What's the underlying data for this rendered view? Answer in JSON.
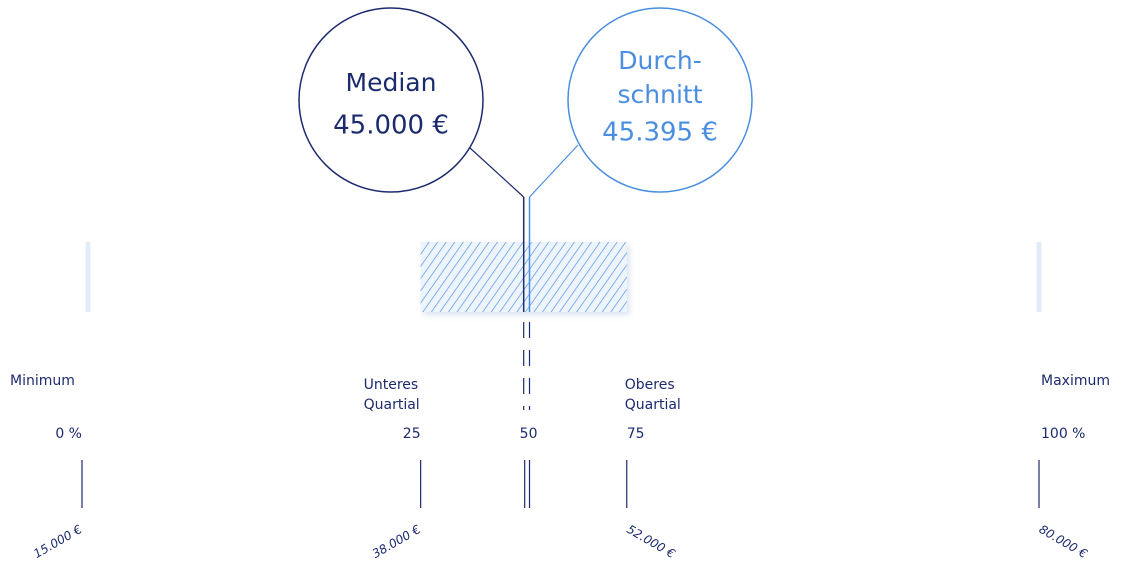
{
  "chart_data": {
    "type": "box",
    "stats": {
      "min": 15000,
      "q1": 38000,
      "median": 45000,
      "q3": 52000,
      "max": 80000,
      "mean": 45395
    },
    "value_labels": {
      "min": "15.000 €",
      "q1": "38.000 €",
      "median": "45.000 €",
      "q3": "52.000 €",
      "max": "80.000 €",
      "mean": "45.395 €"
    },
    "names": {
      "min": [
        "Minimum"
      ],
      "q1": [
        "Unteres",
        "Quartial"
      ],
      "median": [
        "Median"
      ],
      "q3": [
        "Oberes",
        "Quartial"
      ],
      "max": [
        "Maximum"
      ],
      "mean": [
        "Durch-",
        "schnitt"
      ]
    },
    "percentile_labels": {
      "min": "0 %",
      "q1": "25",
      "median": "50",
      "q3": "75",
      "max": "100 %"
    },
    "colors": {
      "median": "#1c2b6e",
      "mean": "#4a8ee0",
      "whisker": "#e3ebf8",
      "box": "#4a8ee0"
    }
  }
}
